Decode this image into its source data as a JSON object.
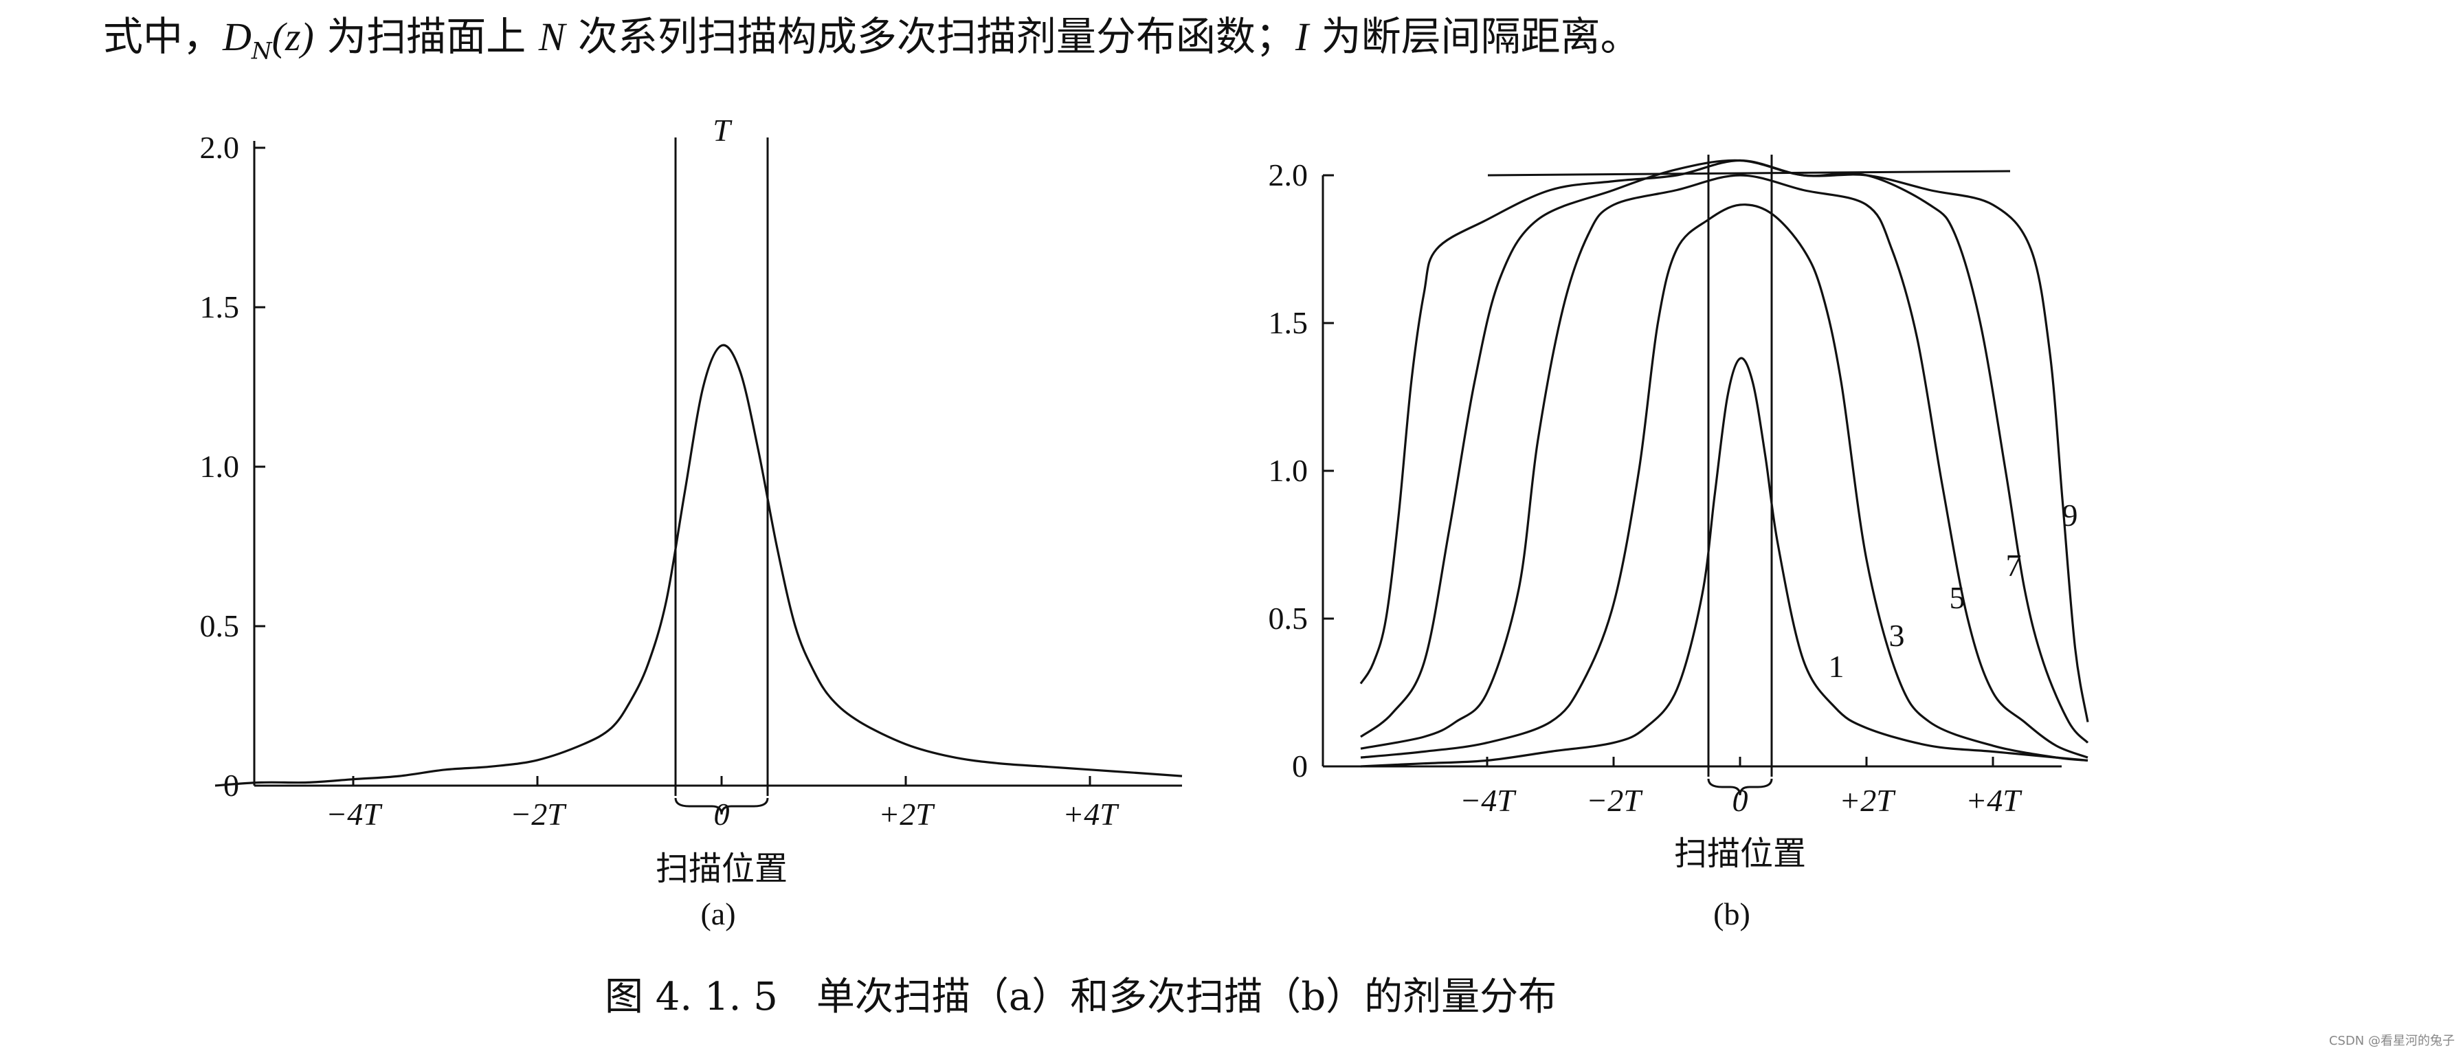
{
  "intro": {
    "prefix": "式中，",
    "symbol_d": "D",
    "symbol_d_sub": "N",
    "symbol_d_arg": "(z)",
    "text1": " 为扫描面上 ",
    "symbol_n": "N",
    "text2": " 次系列扫描构成多次扫描剂量分布函数；",
    "symbol_i": "I",
    "text3": " 为断层间隔距离。"
  },
  "caption": "图 4. 1. 5　单次扫描（a）和多次扫描（b）的剂量分布",
  "watermark": "CSDN @看星河的兔子",
  "chart_data": [
    {
      "type": "line",
      "title": "",
      "panel_label": "(a)",
      "xlabel": "扫描位置",
      "ylabel": "",
      "x_unit": "T",
      "xlim": [
        -6,
        6
      ],
      "ylim": [
        0,
        2.0
      ],
      "y_ticks": [
        "0",
        "0.5",
        "1.0",
        "1.5",
        "2.0"
      ],
      "x_ticks": [
        {
          "value": -4,
          "label": "−4T"
        },
        {
          "value": -2,
          "label": "−2T"
        },
        {
          "value": 0,
          "label": "0"
        },
        {
          "value": 2,
          "label": "+2T"
        },
        {
          "value": 4,
          "label": "+4T"
        }
      ],
      "slice_label": "T",
      "slice_bounds": [
        -0.5,
        0.5
      ],
      "series": [
        {
          "x": [
            -5.5,
            -5,
            -4.5,
            -4,
            -3.5,
            -3,
            -2.5,
            -2,
            -1.5,
            -1.2,
            -1.0,
            -0.8,
            -0.6,
            -0.4,
            -0.2,
            0,
            0.2,
            0.4,
            0.6,
            0.8,
            1.0,
            1.2,
            1.5,
            2,
            2.5,
            3,
            3.5,
            4,
            4.5,
            5
          ],
          "y": [
            0.0,
            0.01,
            0.01,
            0.02,
            0.03,
            0.05,
            0.06,
            0.08,
            0.13,
            0.18,
            0.26,
            0.38,
            0.58,
            0.92,
            1.25,
            1.38,
            1.3,
            1.05,
            0.75,
            0.5,
            0.36,
            0.27,
            0.2,
            0.13,
            0.09,
            0.07,
            0.06,
            0.05,
            0.04,
            0.03
          ]
        }
      ]
    },
    {
      "type": "line",
      "title": "",
      "panel_label": "(b)",
      "xlabel": "扫描位置",
      "ylabel": "",
      "x_unit": "T",
      "xlim": [
        -6,
        6
      ],
      "ylim": [
        0,
        2.0
      ],
      "y_ticks": [
        "0",
        "0.5",
        "1.0",
        "1.5",
        "2.0"
      ],
      "x_ticks": [
        {
          "value": -4,
          "label": "−4T"
        },
        {
          "value": -2,
          "label": "−2T"
        },
        {
          "value": 0,
          "label": "0"
        },
        {
          "value": 2,
          "label": "+2T"
        },
        {
          "value": 4,
          "label": "+4T"
        }
      ],
      "slice_bounds": [
        -0.5,
        0.5
      ],
      "reference_level": 2.0,
      "series": [
        {
          "name": "1",
          "x": [
            -6,
            -5,
            -4,
            -3,
            -2,
            -1.5,
            -1.0,
            -0.6,
            -0.4,
            -0.2,
            0,
            0.2,
            0.4,
            0.6,
            1.0,
            1.5,
            2,
            3,
            4,
            5,
            5.5
          ],
          "y": [
            0.0,
            0.01,
            0.02,
            0.05,
            0.08,
            0.13,
            0.26,
            0.58,
            0.92,
            1.25,
            1.38,
            1.3,
            1.05,
            0.75,
            0.36,
            0.2,
            0.13,
            0.07,
            0.05,
            0.03,
            0.02
          ]
        },
        {
          "name": "3",
          "x": [
            -6,
            -5,
            -4,
            -3,
            -2.5,
            -2.0,
            -1.6,
            -1.3,
            -1.0,
            -0.5,
            0,
            0.5,
            1.0,
            1.3,
            1.6,
            2.0,
            2.5,
            3,
            4,
            5,
            5.5
          ],
          "y": [
            0.03,
            0.05,
            0.08,
            0.15,
            0.28,
            0.55,
            1.0,
            1.5,
            1.75,
            1.85,
            1.9,
            1.87,
            1.75,
            1.6,
            1.3,
            0.7,
            0.3,
            0.15,
            0.07,
            0.03,
            0.02
          ]
        },
        {
          "name": "5",
          "x": [
            -6,
            -5,
            -4.5,
            -4,
            -3.5,
            -3.2,
            -2.8,
            -2.4,
            -2,
            -1,
            0,
            1,
            2,
            2.4,
            2.8,
            3.2,
            3.6,
            4,
            4.5,
            5,
            5.5
          ],
          "y": [
            0.06,
            0.1,
            0.15,
            0.25,
            0.6,
            1.1,
            1.55,
            1.8,
            1.9,
            1.95,
            2.0,
            1.95,
            1.9,
            1.75,
            1.45,
            0.95,
            0.5,
            0.25,
            0.15,
            0.07,
            0.03
          ]
        },
        {
          "name": "7",
          "x": [
            -6,
            -5.5,
            -5,
            -4.6,
            -4.2,
            -3.8,
            -3.2,
            -2,
            -1,
            0,
            1,
            2,
            3,
            3.4,
            3.8,
            4.2,
            4.5,
            4.8,
            5.2,
            5.5
          ],
          "y": [
            0.1,
            0.18,
            0.35,
            0.8,
            1.3,
            1.65,
            1.85,
            1.95,
            2.02,
            2.05,
            2.0,
            2.0,
            1.9,
            1.8,
            1.5,
            1.0,
            0.6,
            0.35,
            0.15,
            0.08
          ]
        },
        {
          "name": "9",
          "x": [
            -6,
            -5.8,
            -5.6,
            -5.4,
            -5.2,
            -5.0,
            -4.8,
            -4,
            -3,
            -2,
            -1,
            0,
            1,
            2,
            3,
            4,
            4.6,
            4.9,
            5.1,
            5.3,
            5.5
          ],
          "y": [
            0.28,
            0.35,
            0.5,
            0.85,
            1.3,
            1.6,
            1.75,
            1.85,
            1.95,
            1.98,
            2.0,
            2.05,
            2.0,
            2.0,
            1.95,
            1.9,
            1.75,
            1.4,
            0.9,
            0.4,
            0.15
          ]
        }
      ]
    }
  ]
}
